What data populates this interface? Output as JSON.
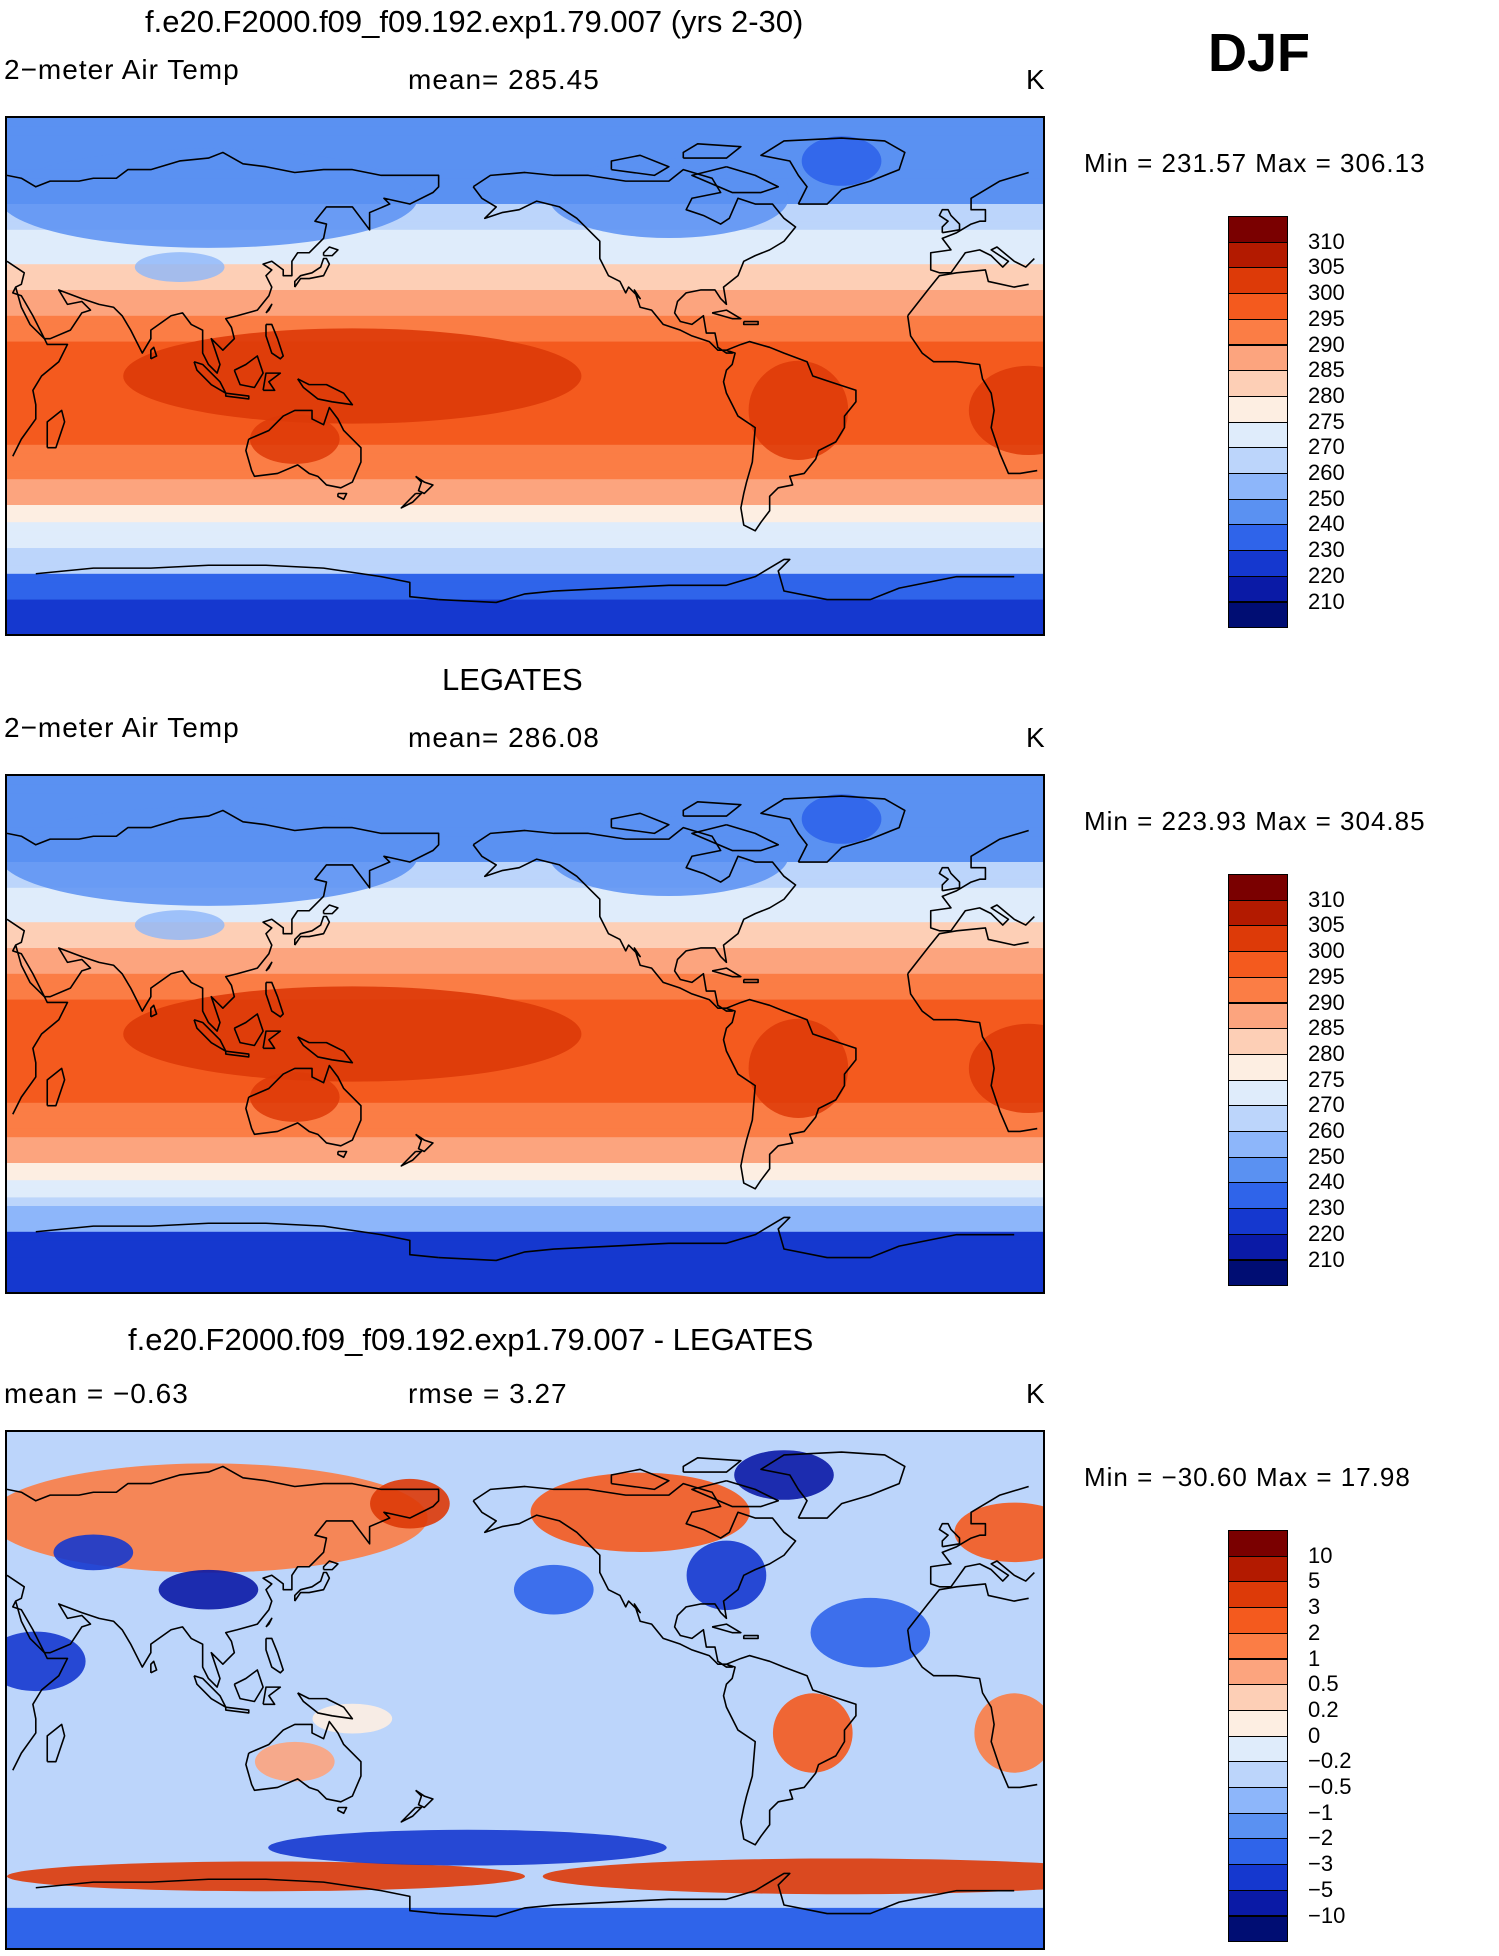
{
  "season": "DJF",
  "panels": [
    {
      "title": "f.e20.F2000.f09_f09.192.exp1.79.007 (yrs 2-30)",
      "left_label": "2−meter Air Temp",
      "center_label": "mean=  285.45",
      "units": "K",
      "minmax": "Min  =  231.57  Max  =  306.13",
      "field_type": "temperature",
      "colorbar_labels": [
        "310",
        "305",
        "300",
        "295",
        "290",
        "285",
        "280",
        "275",
        "270",
        "260",
        "250",
        "240",
        "230",
        "220",
        "210"
      ]
    },
    {
      "title": "LEGATES",
      "left_label": "2−meter Air Temp",
      "center_label": "mean=  286.08",
      "units": "K",
      "minmax": "Min  =  223.93  Max  =  304.85",
      "field_type": "temperature",
      "colorbar_labels": [
        "310",
        "305",
        "300",
        "295",
        "290",
        "285",
        "280",
        "275",
        "270",
        "260",
        "250",
        "240",
        "230",
        "220",
        "210"
      ]
    },
    {
      "title": "f.e20.F2000.f09_f09.192.exp1.79.007 - LEGATES",
      "left_label": "mean  =    −0.63",
      "center_label": "rmse  =     3.27",
      "units": "K",
      "minmax": "Min  =  −30.60  Max  =    17.98",
      "field_type": "difference",
      "colorbar_labels": [
        "10",
        "5",
        "3",
        "2",
        "1",
        "0.5",
        "0.2",
        "0",
        "−0.2",
        "−0.5",
        "−1",
        "−2",
        "−3",
        "−5",
        "−10"
      ]
    }
  ],
  "colors": {
    "scale": [
      "#7a0000",
      "#b31a00",
      "#dd3a08",
      "#f45a1e",
      "#fb7d45",
      "#fca47e",
      "#fdcfb6",
      "#fdeee2",
      "#dfecfb",
      "#bcd5fb",
      "#8db6fa",
      "#5a91f2",
      "#2f64ea",
      "#1538cf",
      "#0a1aa6",
      "#000d73"
    ],
    "coast": "#000000"
  }
}
